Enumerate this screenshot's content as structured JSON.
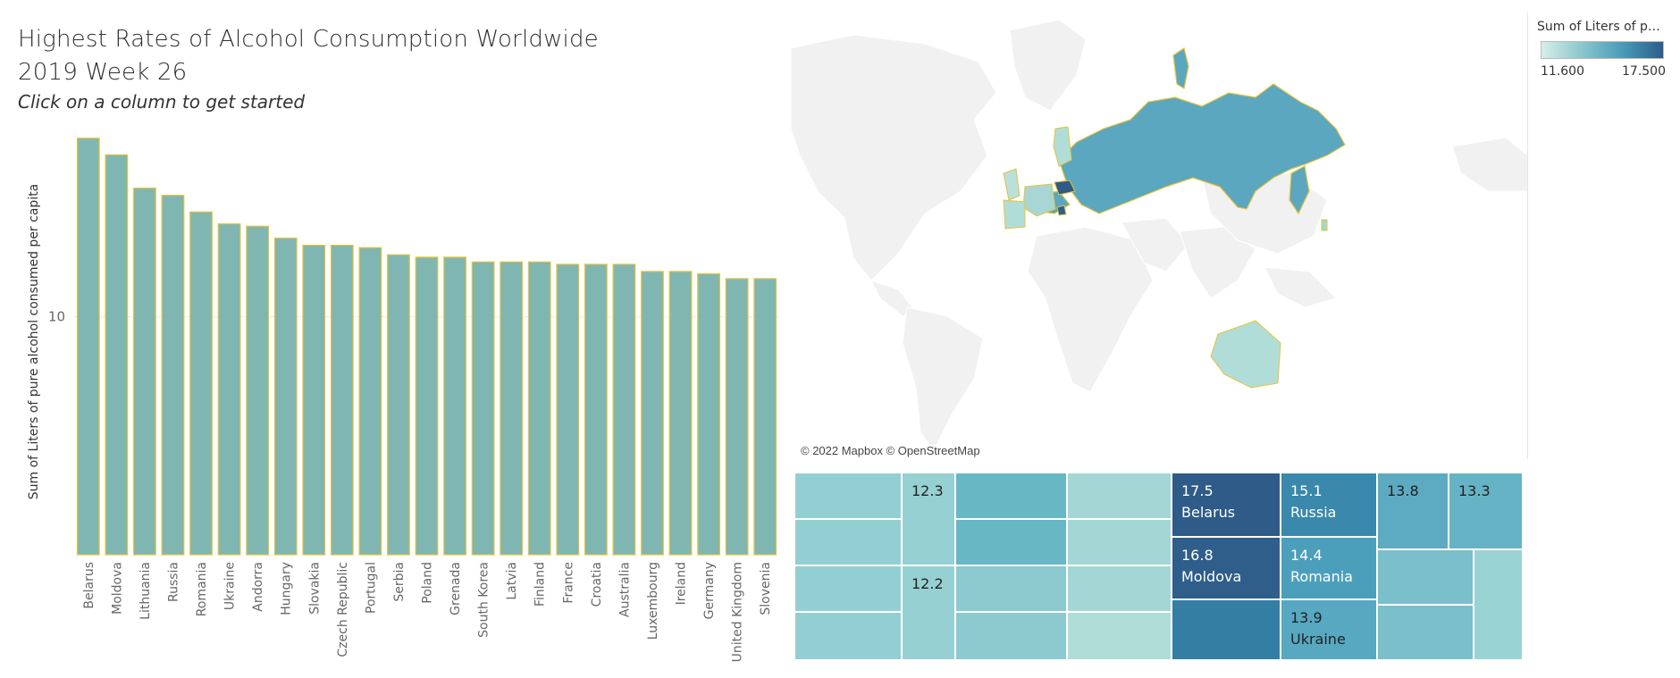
{
  "header": {
    "title_line1": "Highest Rates of Alcohol Consumption Worldwide",
    "title_line2": "2019 Week 26",
    "subtitle": "Click on a column to get started"
  },
  "colors": {
    "bar_fill": "#7fb6b1",
    "bar_outline": "#e6c33c",
    "legend_low": "#d6eeea",
    "legend_high": "#2b5d8a",
    "map_land": "#f2f2f2",
    "map_highlight": "#5aa7bf"
  },
  "chart_data": {
    "type": "bar",
    "title": "",
    "xlabel": "",
    "ylabel": "Sum of Liters of pure alcohol consumed per capita",
    "y_ticks": [
      10
    ],
    "ylim": [
      0,
      17.9
    ],
    "grid": false,
    "categories": [
      "Belarus",
      "Moldova",
      "Lithuania",
      "Russia",
      "Romania",
      "Ukraine",
      "Andorra",
      "Hungary",
      "Slovakia",
      "Czech Republic",
      "Portugal",
      "Serbia",
      "Poland",
      "Grenada",
      "South Korea",
      "Latvia",
      "Finland",
      "France",
      "Croatia",
      "Australia",
      "Luxembourg",
      "Ireland",
      "Germany",
      "United Kingdom",
      "Slovenia"
    ],
    "values": [
      17.5,
      16.8,
      15.4,
      15.1,
      14.4,
      13.9,
      13.8,
      13.3,
      13.0,
      13.0,
      12.9,
      12.6,
      12.5,
      12.5,
      12.3,
      12.3,
      12.3,
      12.2,
      12.2,
      12.2,
      11.9,
      11.9,
      11.8,
      11.6,
      11.6
    ]
  },
  "map": {
    "credit": "© 2022 Mapbox © OpenStreetMap"
  },
  "legend": {
    "title": "Sum of Liters of pur..",
    "min_label": "11.600",
    "max_label": "17.500"
  },
  "treemap": {
    "cells": [
      {
        "label": "",
        "color": "#93cfd2",
        "dark": false
      },
      {
        "label": "",
        "color": "#93cfd2",
        "dark": false
      },
      {
        "label": "",
        "color": "#93cfd2",
        "dark": false
      },
      {
        "label": "",
        "color": "#93cfd2",
        "dark": false
      },
      {
        "label": "12.3",
        "color": "#96d0d2",
        "dark": false
      },
      {
        "label": "12.2",
        "color": "#96d0d2",
        "dark": false
      },
      {
        "label": "",
        "color": "#68b7c5",
        "dark": false
      },
      {
        "label": "",
        "color": "#68b7c5",
        "dark": false
      },
      {
        "label": "",
        "color": "#8ccacf",
        "dark": false
      },
      {
        "label": "",
        "color": "#8ccacf",
        "dark": false
      },
      {
        "label": "",
        "color": "#a4d6d5",
        "dark": false
      },
      {
        "label": "",
        "color": "#a4d6d5",
        "dark": false
      },
      {
        "label": "",
        "color": "#a4d6d5",
        "dark": false
      },
      {
        "label": "",
        "color": "#b1ddd8",
        "dark": false
      },
      {
        "label": "17.5\nBelarus",
        "color": "#2e5b87",
        "dark": true
      },
      {
        "label": "16.8\nMoldova",
        "color": "#2f5e8a",
        "dark": true
      },
      {
        "label": "",
        "color": "#347ea3",
        "dark": true
      },
      {
        "label": "15.1\nRussia",
        "color": "#3a88ab",
        "dark": true
      },
      {
        "label": "14.4\nRomania",
        "color": "#4c9fbb",
        "dark": true
      },
      {
        "label": "13.9\nUkraine",
        "color": "#57a8c1",
        "dark": false
      },
      {
        "label": "13.8",
        "color": "#5dabc2",
        "dark": false
      },
      {
        "label": "13.3",
        "color": "#67b3c6",
        "dark": false
      },
      {
        "label": "",
        "color": "#7bbfcb",
        "dark": false
      },
      {
        "label": "",
        "color": "#7bbfcb",
        "dark": false
      },
      {
        "label": "",
        "color": "#9ad3d3",
        "dark": false
      }
    ]
  }
}
